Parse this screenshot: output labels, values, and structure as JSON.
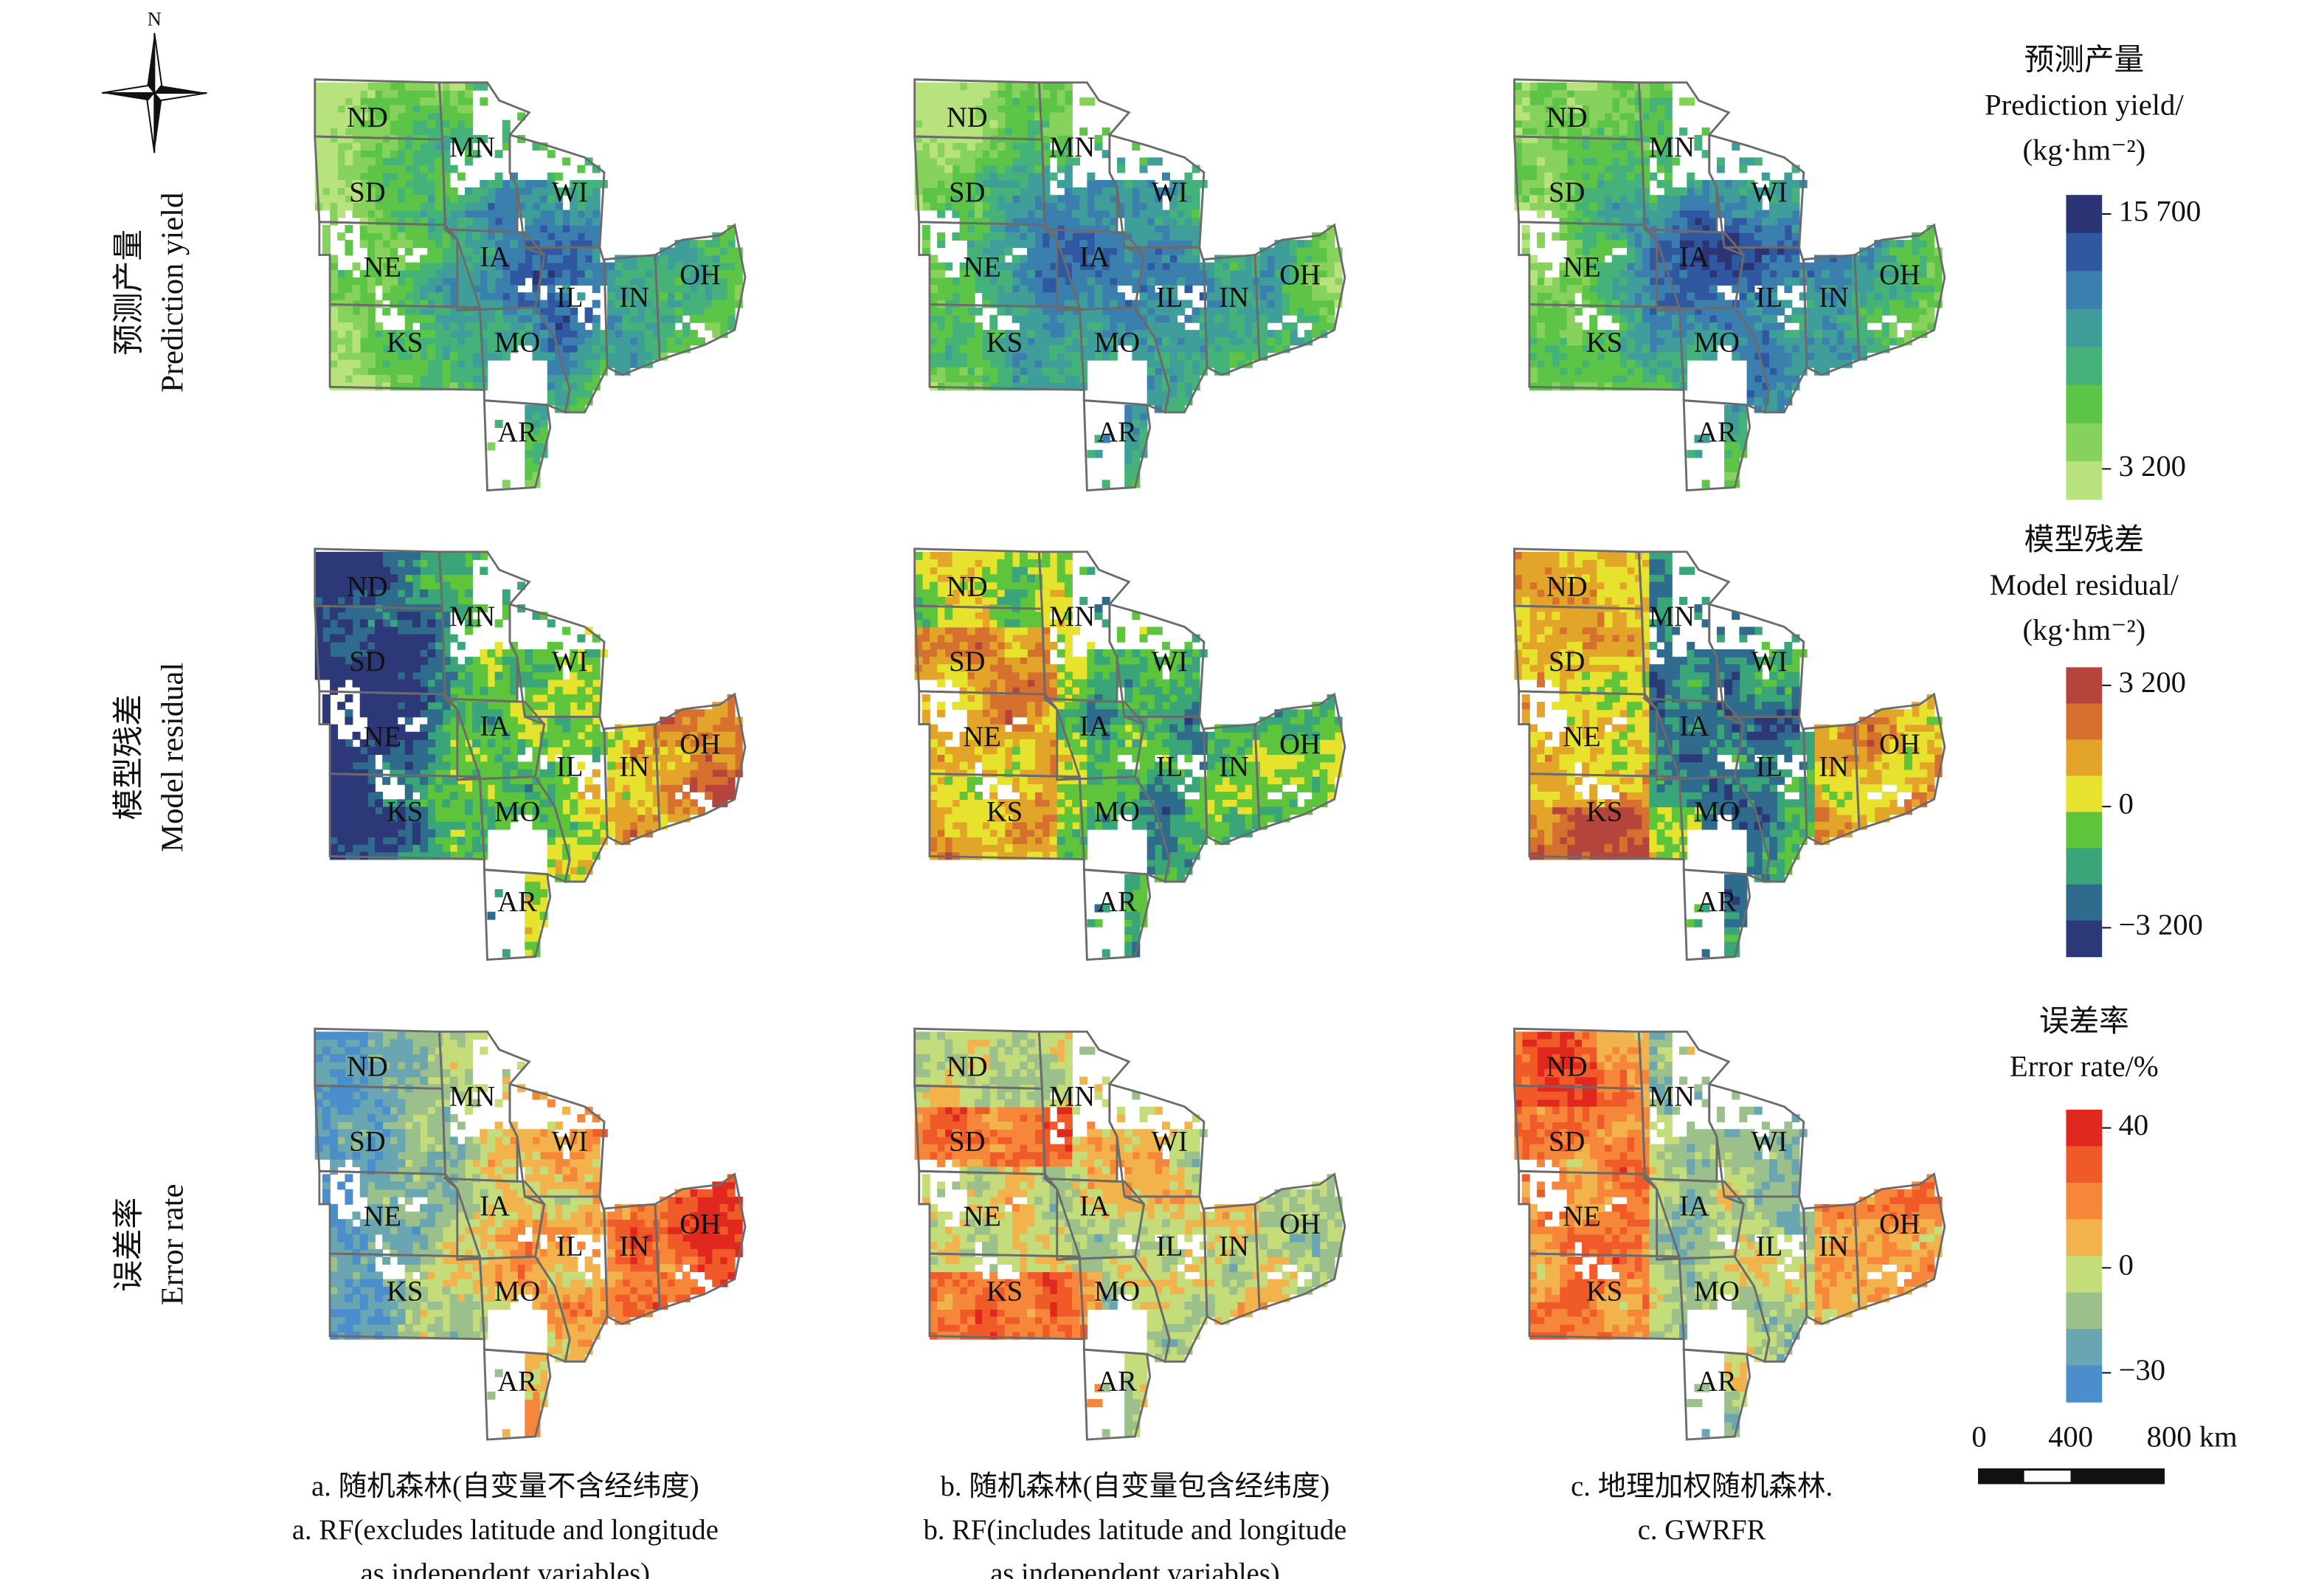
{
  "compass": "N",
  "rows": [
    {
      "label_zh": "预测产量",
      "label_en": "Prediction yield",
      "legend": {
        "title_zh": "预测产量",
        "title_en": "Prediction yield/",
        "unit": "(kg·hm⁻²)",
        "colors": [
          "#2b3576",
          "#2f58a0",
          "#3a7fae",
          "#3f9e9a",
          "#45b27a",
          "#5cc447",
          "#86d25c",
          "#b8e27e"
        ],
        "ticks": [
          {
            "value": 15700,
            "label": "15 700"
          },
          {
            "value": 3200,
            "label": "3 200"
          }
        ]
      }
    },
    {
      "label_zh": "模型残差",
      "label_en": "Model residual",
      "legend": {
        "title_zh": "模型残差",
        "title_en": "Model residual/",
        "unit": "(kg·hm⁻²)",
        "colors": [
          "#b5443c",
          "#d6702e",
          "#e3a42a",
          "#e6e22e",
          "#5ec43c",
          "#3ba57a",
          "#2f6b8c",
          "#2c3878"
        ],
        "ticks": [
          {
            "value": 3200,
            "label": "3 200"
          },
          0,
          {
            "value": -3200,
            "label": "−3 200"
          }
        ]
      }
    },
    {
      "label_zh": "误差率",
      "label_en": "Error rate",
      "legend": {
        "title_zh": "误差率",
        "title_en": "Error rate/%",
        "unit": null,
        "colors": [
          "#e0281f",
          "#f05a28",
          "#f5863a",
          "#f2b24c",
          "#c4dc7a",
          "#9cc08c",
          "#6aa6b2",
          "#4a8ecc"
        ],
        "ticks": [
          40,
          0,
          {
            "value": -30,
            "label": "−30"
          }
        ]
      }
    }
  ],
  "columns": [
    {
      "caption": [
        "a. 随机森林(自变量不含经纬度)",
        "a. RF(excludes latitude and longitude",
        "as independent variables)"
      ]
    },
    {
      "caption": [
        "b. 随机森林(自变量包含经纬度)",
        "b. RF(includes latitude and longitude",
        "as independent variables)"
      ]
    },
    {
      "caption": [
        "c. 地理加权随机森林.",
        "c. GWRFR"
      ]
    }
  ],
  "states": [
    "ND",
    "SD",
    "NE",
    "KS",
    "MN",
    "WI",
    "IA",
    "MO",
    "IL",
    "IN",
    "OH",
    "AR"
  ],
  "scale_bar": [
    "0",
    "400",
    "800 km"
  ]
}
